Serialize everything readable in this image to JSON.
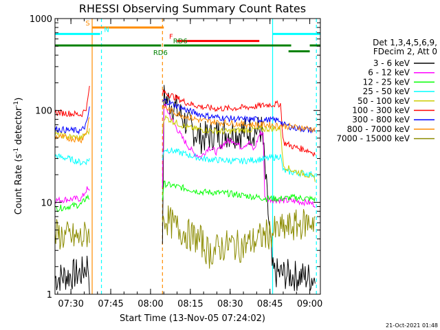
{
  "chart_data": {
    "type": "line",
    "title": "RHESSI Observing Summary Count Rates",
    "xlabel": "Start Time (13-Nov-05 07:24:02)",
    "ylabel_main": "Count Rate (s",
    "ylabel_sup": "-1",
    "ylabel_rest": " detector",
    "ylabel_sup2": "-1",
    "ylabel_end": ")",
    "x_unit": "minutes since 07:24:02",
    "xlim": [
      0,
      100
    ],
    "ylim": [
      1,
      1000
    ],
    "yscale": "log",
    "x_ticks": [
      {
        "label": "07:30",
        "x": 6
      },
      {
        "label": "07:45",
        "x": 21
      },
      {
        "label": "08:00",
        "x": 36
      },
      {
        "label": "08:15",
        "x": 51
      },
      {
        "label": "08:30",
        "x": 66
      },
      {
        "label": "08:45",
        "x": 81
      },
      {
        "label": "09:00",
        "x": 96
      }
    ],
    "y_ticks": [
      {
        "label": "1",
        "y": 1
      },
      {
        "label": "10",
        "y": 10
      },
      {
        "label": "100",
        "y": 100
      },
      {
        "label": "1000",
        "y": 1000
      }
    ],
    "legend": {
      "header": [
        "Det 1,3,4,5,6,9,",
        "FDecim 2, Att 0"
      ],
      "placement": "right"
    },
    "series": [
      {
        "name": "3 - 6 keV",
        "color": "#000000",
        "pre": [
          [
            0,
            1.5
          ],
          [
            5,
            1.6
          ],
          [
            10,
            1.7
          ],
          [
            12.5,
            2.2
          ],
          [
            13,
            1.2
          ]
        ],
        "post": [
          [
            40.5,
            2.5
          ],
          [
            41,
            140
          ],
          [
            45,
            110
          ],
          [
            50,
            70
          ],
          [
            55,
            50
          ],
          [
            60,
            55
          ],
          [
            65,
            57
          ],
          [
            70,
            58
          ],
          [
            75,
            60
          ],
          [
            78,
            62
          ],
          [
            82,
            1.7
          ],
          [
            90,
            1.6
          ],
          [
            98,
            1.5
          ]
        ]
      },
      {
        "name": "6 - 12 keV",
        "color": "#ff00ff",
        "pre": [
          [
            0,
            10.5
          ],
          [
            5,
            10.8
          ],
          [
            10,
            11
          ],
          [
            12,
            14
          ],
          [
            13,
            13
          ]
        ],
        "post": [
          [
            40.5,
            15
          ],
          [
            41,
            120
          ],
          [
            44,
            80
          ],
          [
            48,
            50
          ],
          [
            52,
            35
          ],
          [
            55,
            31
          ],
          [
            58,
            40
          ],
          [
            61,
            35
          ],
          [
            64,
            45
          ],
          [
            67,
            48
          ],
          [
            70,
            40
          ],
          [
            73,
            45
          ],
          [
            75,
            37
          ],
          [
            77,
            55
          ],
          [
            78.5,
            58
          ],
          [
            79,
            11
          ],
          [
            85,
            10.5
          ],
          [
            90,
            10.3
          ],
          [
            95,
            10
          ],
          [
            98,
            9.5
          ]
        ]
      },
      {
        "name": "12 - 25 keV",
        "color": "#00ff00",
        "pre": [
          [
            0,
            8.5
          ],
          [
            5,
            9
          ],
          [
            10,
            9.5
          ],
          [
            12,
            11.5
          ],
          [
            13,
            11
          ]
        ],
        "post": [
          [
            40.5,
            11
          ],
          [
            41,
            16
          ],
          [
            45,
            15
          ],
          [
            50,
            14
          ],
          [
            55,
            13
          ],
          [
            60,
            12.8
          ],
          [
            65,
            12.5
          ],
          [
            70,
            12
          ],
          [
            75,
            11.5
          ],
          [
            80,
            11
          ],
          [
            85,
            11
          ],
          [
            90,
            11.3
          ],
          [
            95,
            11
          ],
          [
            98,
            10.8
          ]
        ]
      },
      {
        "name": "25 - 50 keV",
        "color": "#00ffff",
        "pre": [
          [
            0,
            32
          ],
          [
            5,
            30
          ],
          [
            10,
            27
          ],
          [
            12,
            28
          ],
          [
            13,
            30
          ]
        ],
        "post": [
          [
            40.5,
            28
          ],
          [
            41,
            38
          ],
          [
            45,
            36
          ],
          [
            50,
            33
          ],
          [
            55,
            30
          ],
          [
            60,
            29
          ],
          [
            65,
            28.5
          ],
          [
            70,
            28
          ],
          [
            75,
            29
          ],
          [
            80,
            30
          ],
          [
            83,
            31
          ],
          [
            85,
            32
          ],
          [
            86,
            22
          ],
          [
            90,
            21
          ],
          [
            95,
            20.5
          ],
          [
            98,
            20
          ]
        ]
      },
      {
        "name": "50 - 100 keV",
        "color": "#cccc00",
        "pre": [
          [
            0,
            55
          ],
          [
            5,
            52
          ],
          [
            10,
            50
          ],
          [
            12,
            57
          ],
          [
            13,
            60
          ]
        ],
        "post": [
          [
            40.5,
            58
          ],
          [
            41,
            85
          ],
          [
            45,
            75
          ],
          [
            50,
            65
          ],
          [
            55,
            62
          ],
          [
            60,
            60
          ],
          [
            65,
            59
          ],
          [
            70,
            61
          ],
          [
            75,
            62
          ],
          [
            80,
            63
          ],
          [
            85,
            64
          ],
          [
            86,
            25
          ],
          [
            90,
            22
          ],
          [
            95,
            20
          ],
          [
            98,
            18
          ]
        ]
      },
      {
        "name": "100 - 300 keV",
        "color": "#ff0000",
        "pre": [
          [
            0,
            95
          ],
          [
            5,
            93
          ],
          [
            10,
            90
          ],
          [
            12,
            110
          ],
          [
            13,
            180
          ]
        ],
        "post": [
          [
            40.5,
            150
          ],
          [
            41,
            160
          ],
          [
            45,
            140
          ],
          [
            50,
            120
          ],
          [
            55,
            110
          ],
          [
            60,
            105
          ],
          [
            65,
            105
          ],
          [
            70,
            107
          ],
          [
            75,
            110
          ],
          [
            80,
            115
          ],
          [
            85,
            118
          ],
          [
            86,
            45
          ],
          [
            90,
            40
          ],
          [
            95,
            37
          ],
          [
            98,
            34
          ]
        ]
      },
      {
        "name": "300 - 800 keV",
        "color": "#0000ff",
        "pre": [
          [
            0,
            63
          ],
          [
            5,
            61
          ],
          [
            10,
            60
          ],
          [
            12,
            72
          ],
          [
            13,
            110
          ]
        ],
        "post": [
          [
            40.5,
            120
          ],
          [
            41,
            130
          ],
          [
            45,
            115
          ],
          [
            50,
            100
          ],
          [
            55,
            90
          ],
          [
            60,
            85
          ],
          [
            65,
            82
          ],
          [
            70,
            80
          ],
          [
            75,
            80
          ],
          [
            80,
            79
          ],
          [
            85,
            78
          ],
          [
            86,
            70
          ],
          [
            90,
            65
          ],
          [
            95,
            62
          ],
          [
            98,
            60
          ]
        ]
      },
      {
        "name": "800 - 7000 keV",
        "color": "#ff8c00",
        "pre": [
          [
            0,
            52
          ],
          [
            5,
            50
          ],
          [
            10,
            48
          ],
          [
            12,
            60
          ],
          [
            13,
            90
          ]
        ],
        "post": [
          [
            40.5,
            100
          ],
          [
            41,
            110
          ],
          [
            45,
            95
          ],
          [
            50,
            85
          ],
          [
            55,
            78
          ],
          [
            60,
            75
          ],
          [
            65,
            73
          ],
          [
            70,
            71
          ],
          [
            75,
            70
          ],
          [
            80,
            70
          ],
          [
            85,
            68
          ],
          [
            90,
            66
          ],
          [
            95,
            64
          ],
          [
            98,
            62
          ]
        ]
      },
      {
        "name": "7000 - 15000 keV",
        "color": "#8b8b00",
        "pre": [
          [
            0,
            4.5
          ],
          [
            5,
            4.2
          ],
          [
            10,
            4
          ],
          [
            12,
            4.5
          ],
          [
            13,
            5
          ]
        ],
        "post": [
          [
            40.5,
            5
          ],
          [
            41,
            7
          ],
          [
            45,
            5.5
          ],
          [
            50,
            4.5
          ],
          [
            55,
            3.8
          ],
          [
            58,
            2.8
          ],
          [
            62,
            3.2
          ],
          [
            66,
            3.5
          ],
          [
            70,
            3.3
          ],
          [
            75,
            3.8
          ],
          [
            80,
            4.5
          ],
          [
            85,
            5
          ],
          [
            90,
            5.5
          ],
          [
            95,
            6
          ],
          [
            98,
            6.5
          ]
        ]
      }
    ],
    "flags": [
      {
        "label": "S",
        "color": "#ff8c00",
        "y": 800,
        "x0": 14,
        "x1": 41,
        "label_x": 11.5
      },
      {
        "label": "N",
        "color": "#00ffff",
        "y": 680,
        "x0": 0,
        "x1": 17,
        "label_x": 18.5
      },
      {
        "label": "N",
        "color": "#00ffff",
        "y": 680,
        "x0": 82,
        "x1": 100,
        "label_x": null
      },
      {
        "label": "F",
        "color": "#ff0000",
        "y": 570,
        "x0": 46,
        "x1": 77,
        "label_x": 43
      },
      {
        "label": "RD6",
        "color": "#008000",
        "y": 510,
        "x0": 0,
        "x1": 40,
        "label_x": 37
      },
      {
        "label": "RD6",
        "color": "#008000",
        "y": 510,
        "x0": 41,
        "x1": 89,
        "label_x": 44.5
      },
      {
        "label": "RD6",
        "color": "#008000",
        "y": 510,
        "x0": 96,
        "x1": 100,
        "label_x": null
      },
      {
        "label": "RD6",
        "color": "#008000",
        "y": 440,
        "x0": 88,
        "x1": 96,
        "label_x": null
      }
    ],
    "vlines": [
      {
        "x": 14,
        "color": "#ff8c00",
        "style": "solid"
      },
      {
        "x": 17.5,
        "color": "#00ffff",
        "style": "dashed"
      },
      {
        "x": 40.5,
        "color": "#ff8c00",
        "style": "dashed"
      },
      {
        "x": 82,
        "color": "#00ffff",
        "style": "solid"
      },
      {
        "x": 98.5,
        "color": "#00ffff",
        "style": "dashed"
      }
    ],
    "footer_stamp": "21-Oct-2021 01:48"
  }
}
